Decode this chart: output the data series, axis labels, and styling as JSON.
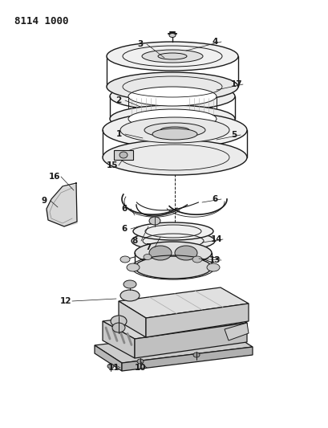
{
  "title": "8114 1000",
  "bg_color": "#ffffff",
  "lc": "#1a1a1a",
  "fig_width": 4.1,
  "fig_height": 5.33,
  "dpi": 100
}
